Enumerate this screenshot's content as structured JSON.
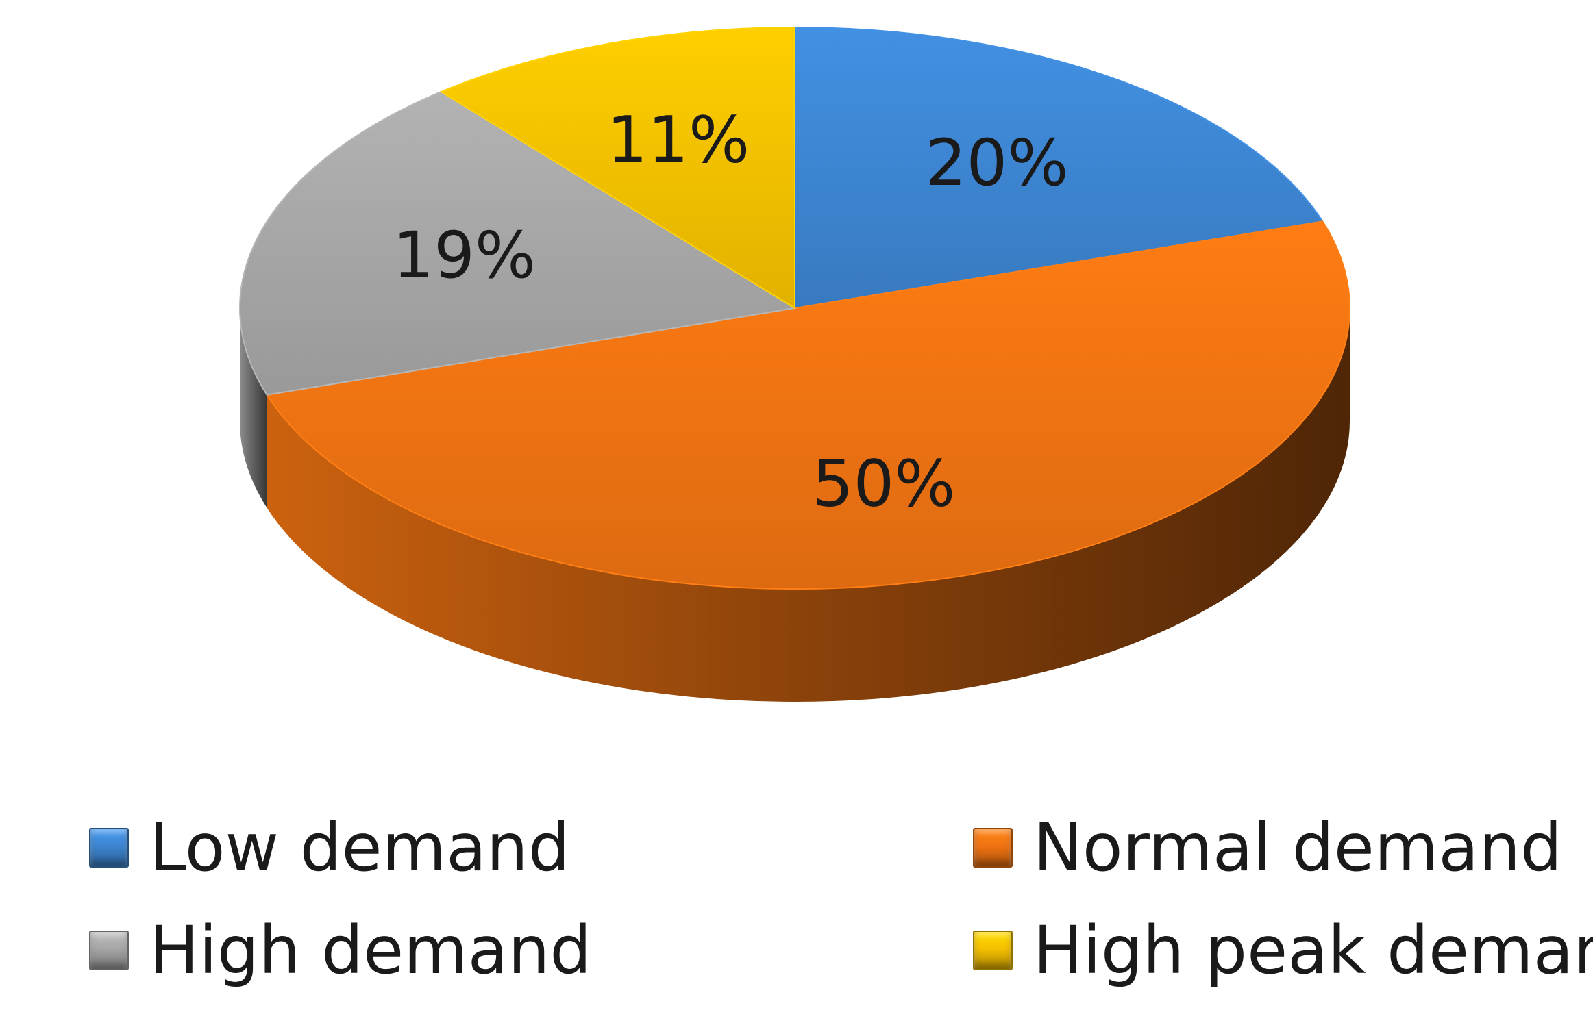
{
  "chart_data": {
    "type": "pie",
    "categories": [
      "Low demand",
      "Normal demand",
      "High demand",
      "High peak demand"
    ],
    "values": [
      20,
      50,
      19,
      11
    ],
    "value_labels": [
      "20%",
      "50%",
      "19%",
      "11%"
    ],
    "colors": [
      "#3d85d1",
      "#f07312",
      "#a6a6a6",
      "#f5c000"
    ],
    "legend_position": "bottom",
    "style": "3d"
  }
}
